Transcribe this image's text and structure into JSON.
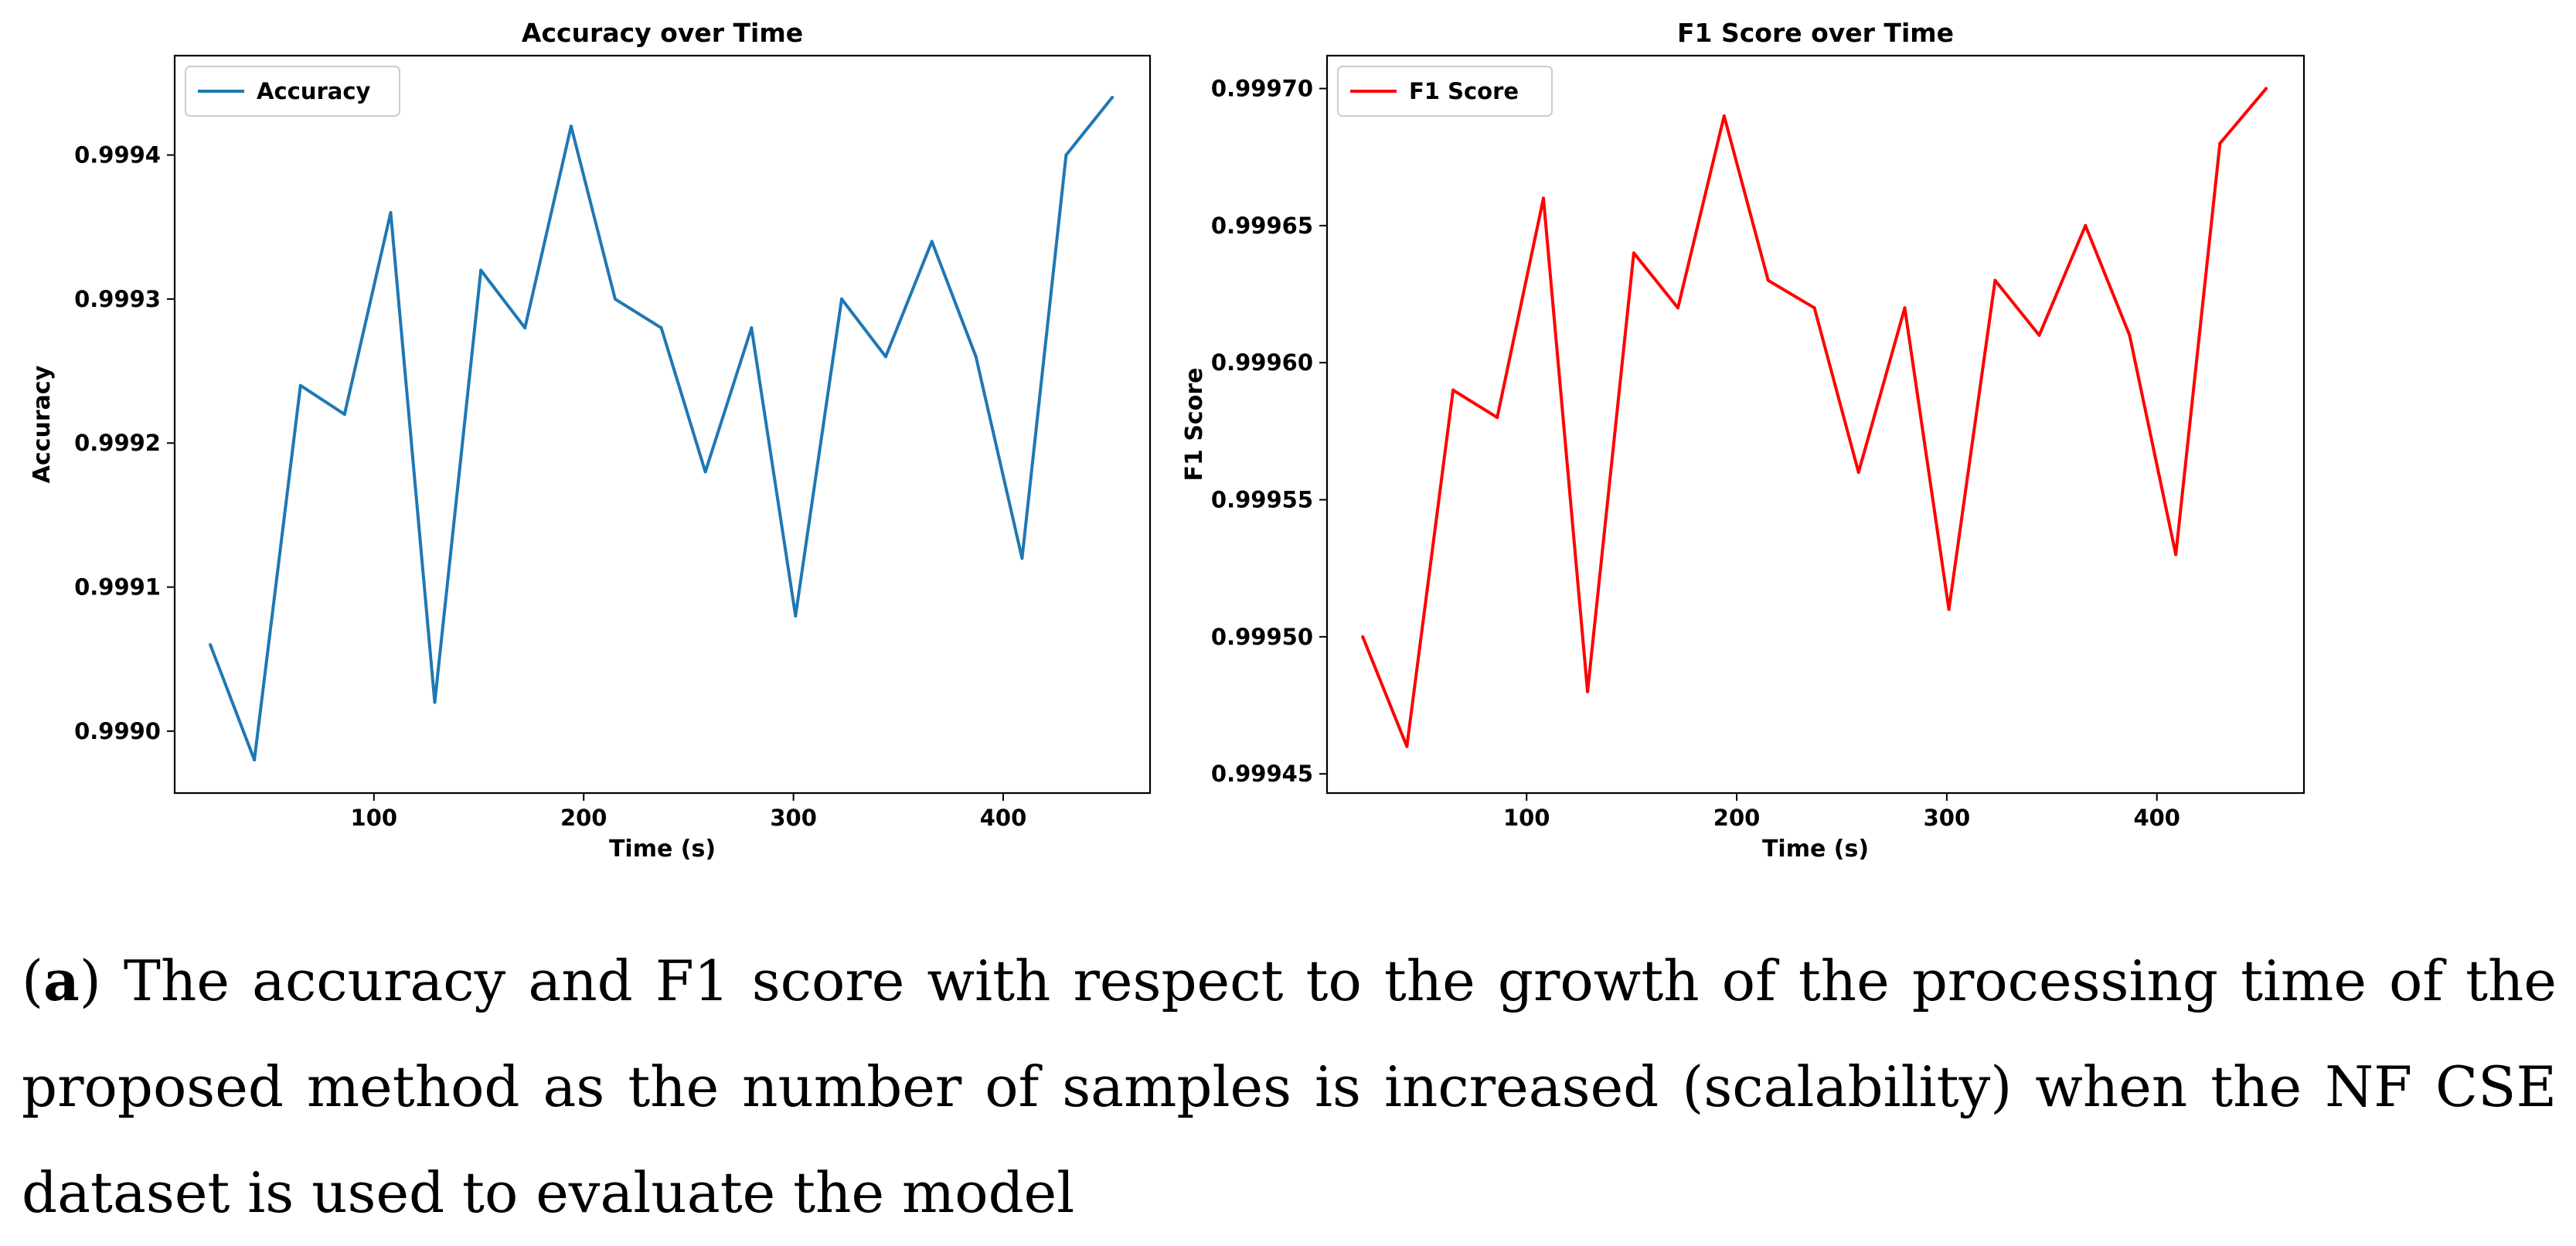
{
  "chart_data": [
    {
      "type": "line",
      "title": "Accuracy over Time",
      "xlabel": "Time (s)",
      "ylabel": "Accuracy",
      "xlim": [
        5,
        470
      ],
      "ylim": [
        0.998957,
        0.999469
      ],
      "xticks": [
        100,
        200,
        300,
        400
      ],
      "yticks": [
        0.999,
        0.9991,
        0.9992,
        0.9993,
        0.9994
      ],
      "ytick_labels": [
        "0.9990",
        "0.9991",
        "0.9992",
        "0.9993",
        "0.9994"
      ],
      "grid": false,
      "legend": "top-left",
      "series": [
        {
          "name": "Accuracy",
          "color": "#1f77b4",
          "x": [
            22,
            43,
            65,
            86,
            108,
            129,
            151,
            172,
            194,
            215,
            237,
            258,
            280,
            301,
            323,
            344,
            366,
            387,
            409,
            430,
            452
          ],
          "y": [
            0.99906,
            0.99898,
            0.99924,
            0.99922,
            0.99936,
            0.99902,
            0.99932,
            0.99928,
            0.99942,
            0.9993,
            0.99928,
            0.99918,
            0.99928,
            0.99908,
            0.9993,
            0.99926,
            0.99934,
            0.99926,
            0.99912,
            0.9994,
            0.99944
          ]
        }
      ]
    },
    {
      "type": "line",
      "title": "F1 Score over Time",
      "xlabel": "Time (s)",
      "ylabel": "F1 Score",
      "xlim": [
        5,
        470
      ],
      "ylim": [
        0.999443,
        0.999712
      ],
      "xticks": [
        100,
        200,
        300,
        400
      ],
      "yticks": [
        0.99945,
        0.9995,
        0.99955,
        0.9996,
        0.99965,
        0.9997
      ],
      "ytick_labels": [
        "0.99945",
        "0.99950",
        "0.99955",
        "0.99960",
        "0.99965",
        "0.99970"
      ],
      "grid": false,
      "legend": "top-left",
      "series": [
        {
          "name": "F1 Score",
          "color": "#ff0000",
          "x": [
            22,
            43,
            65,
            86,
            108,
            129,
            151,
            172,
            194,
            215,
            237,
            258,
            280,
            301,
            323,
            344,
            366,
            387,
            409,
            430,
            452
          ],
          "y": [
            0.9995,
            0.99946,
            0.99959,
            0.99958,
            0.99966,
            0.99948,
            0.99964,
            0.99962,
            0.99969,
            0.99963,
            0.99962,
            0.99956,
            0.99962,
            0.99951,
            0.99963,
            0.99961,
            0.99965,
            0.99961,
            0.99953,
            0.99968,
            0.9997
          ]
        }
      ]
    }
  ],
  "caption": {
    "label": "a",
    "text": " The accuracy and F1 score with respect to the growth of the processing time of the proposed method as the number of samples is increased (scalability) when the NF CSE dataset is used to evaluate the model"
  }
}
